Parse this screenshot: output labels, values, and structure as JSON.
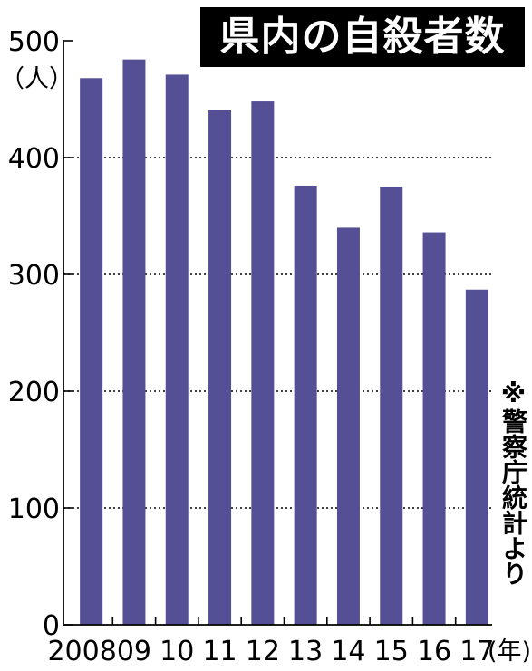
{
  "chart_data": {
    "type": "bar",
    "title": "県内の自殺者数",
    "categories": [
      "2008",
      "09",
      "10",
      "11",
      "12",
      "13",
      "14",
      "15",
      "16",
      "17"
    ],
    "values": [
      468,
      484,
      471,
      441,
      448,
      376,
      340,
      375,
      336,
      287
    ],
    "ylim": [
      0,
      500
    ],
    "yticks": [
      "0",
      "100",
      "200",
      "300",
      "400",
      "500"
    ],
    "y_unit": "（人）",
    "x_unit": "(年)",
    "note": "※警察庁統計より",
    "grid": "dotted-horizontal",
    "bar_color": "#554f96"
  }
}
